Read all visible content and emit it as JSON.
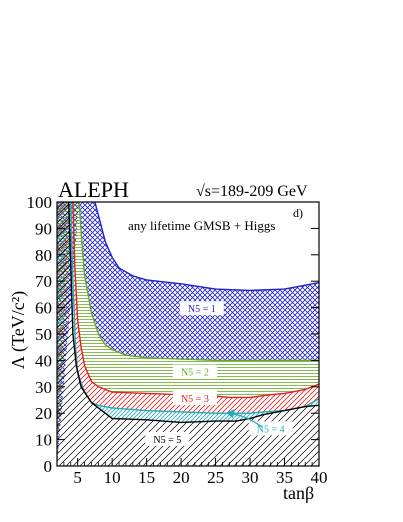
{
  "chart_data": {
    "type": "area",
    "experiment": "ALEPH",
    "energy": "√s=189-209 GeV",
    "panel_label": "d)",
    "annotation": "any lifetime GMSB + Higgs",
    "xlabel": "tanβ",
    "ylabel": "Λ (TeV/c²)",
    "xlim": [
      2,
      40
    ],
    "ylim": [
      0,
      100
    ],
    "x_ticks": [
      5,
      10,
      15,
      20,
      25,
      30,
      35,
      40
    ],
    "y_ticks": [
      0,
      10,
      20,
      30,
      40,
      50,
      60,
      70,
      80,
      90,
      100
    ],
    "grid": false,
    "region_labels": [
      {
        "text": "N5 = 1",
        "series": "N5=1"
      },
      {
        "text": "N5 = 2",
        "series": "N5=2"
      },
      {
        "text": "N5 = 3",
        "series": "N5=3"
      },
      {
        "text": "N5 = 4",
        "series": "N5=4"
      },
      {
        "text": "N5 = 5",
        "series": "N5=5"
      }
    ],
    "series": [
      {
        "name": "N5=1",
        "color": "#2222cc",
        "hatch": "crosshatch",
        "points": [
          [
            7.5,
            100
          ],
          [
            8,
            95
          ],
          [
            9,
            85
          ],
          [
            10,
            79
          ],
          [
            11,
            75
          ],
          [
            13,
            72
          ],
          [
            15,
            70.5
          ],
          [
            20,
            69
          ],
          [
            25,
            67
          ],
          [
            30,
            66.5
          ],
          [
            35,
            67
          ],
          [
            38,
            68.5
          ],
          [
            40,
            69.5
          ]
        ]
      },
      {
        "name": "N5=2",
        "color": "#66aa22",
        "hatch": "horizontal",
        "points": [
          [
            5.2,
            100
          ],
          [
            5.6,
            85
          ],
          [
            6,
            72
          ],
          [
            7,
            58
          ],
          [
            8,
            50
          ],
          [
            9,
            46
          ],
          [
            10,
            44
          ],
          [
            12,
            42
          ],
          [
            15,
            41
          ],
          [
            20,
            40.5
          ],
          [
            25,
            40
          ],
          [
            30,
            40
          ],
          [
            35,
            40
          ],
          [
            40,
            40
          ]
        ]
      },
      {
        "name": "N5=3",
        "color": "#dd2222",
        "hatch": "diagonal",
        "points": [
          [
            4.3,
            100
          ],
          [
            4.6,
            75
          ],
          [
            5,
            55
          ],
          [
            5.5,
            45
          ],
          [
            6,
            38
          ],
          [
            7,
            32
          ],
          [
            8,
            30
          ],
          [
            10,
            28
          ],
          [
            15,
            27.5
          ],
          [
            20,
            27
          ],
          [
            25,
            26.5
          ],
          [
            27,
            26
          ],
          [
            30,
            26
          ],
          [
            33,
            27
          ],
          [
            35,
            27.5
          ],
          [
            38,
            29
          ],
          [
            40,
            31
          ]
        ]
      },
      {
        "name": "N5=4",
        "color": "#22aabb",
        "hatch": "diagonal",
        "points": [
          [
            4,
            100
          ],
          [
            4.3,
            70
          ],
          [
            4.7,
            45
          ],
          [
            5,
            35
          ],
          [
            6,
            28
          ],
          [
            7,
            24
          ],
          [
            8,
            23
          ],
          [
            10,
            22
          ],
          [
            15,
            21
          ],
          [
            20,
            20.5
          ],
          [
            25,
            20
          ],
          [
            30,
            20
          ],
          [
            32,
            20.5
          ],
          [
            35,
            21
          ],
          [
            38,
            22.5
          ],
          [
            40,
            25.5
          ]
        ]
      },
      {
        "name": "N5=5",
        "color": "#000000",
        "hatch": "diagonal",
        "points": [
          [
            3.7,
            100
          ],
          [
            4,
            75
          ],
          [
            4.3,
            50
          ],
          [
            4.8,
            38
          ],
          [
            5.5,
            30
          ],
          [
            7,
            24
          ],
          [
            8,
            22
          ],
          [
            10,
            18
          ],
          [
            15,
            17.5
          ],
          [
            20,
            16.5
          ],
          [
            25,
            17
          ],
          [
            28,
            17
          ],
          [
            30,
            18
          ],
          [
            32,
            19.5
          ],
          [
            35,
            21
          ],
          [
            38,
            22.5
          ],
          [
            40,
            23
          ]
        ]
      }
    ]
  }
}
